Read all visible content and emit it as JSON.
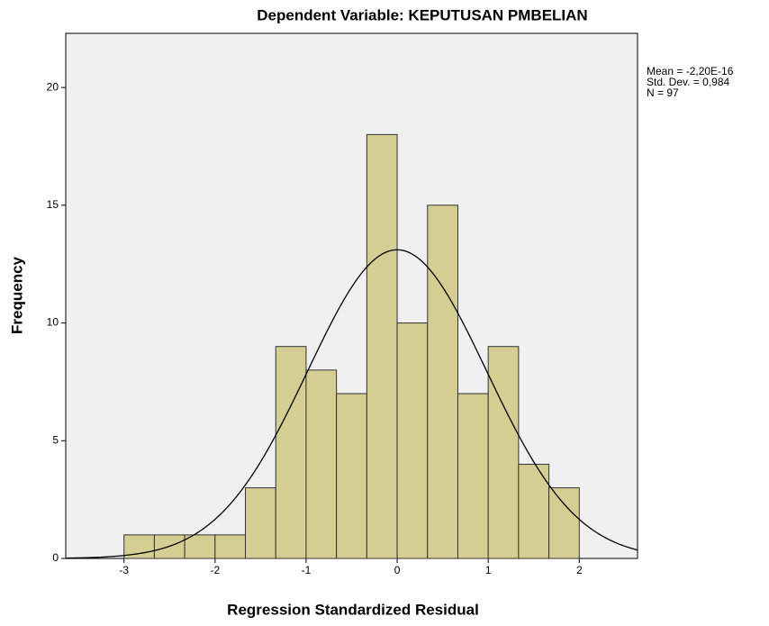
{
  "chart_data": {
    "type": "histogram",
    "title": "Dependent Variable: KEPUTUSAN PMBELIAN",
    "x_label": "Regression Standardized Residual",
    "y_label": "Frequency",
    "bins": [
      -3,
      -2.6667,
      -2.3333,
      -2,
      -1.6667,
      -1.3333,
      -1,
      -0.6667,
      -0.3333,
      0,
      0.3333,
      0.6667,
      1,
      1.3333,
      1.6667,
      2
    ],
    "values": [
      1,
      1,
      1,
      1,
      3,
      9,
      8,
      7,
      18,
      10,
      15,
      7,
      9,
      4,
      3
    ],
    "color": "#d4ce93",
    "annotations": [
      "Mean = -2,20E-16",
      "Std. Dev. = 0,984",
      "N = 97"
    ],
    "normal_curve": {
      "mean": -2.2e-16,
      "sd": 0.984,
      "n": 97
    },
    "xlim": [
      -3.64,
      2.64
    ],
    "xticks": [
      -3,
      -2,
      -1,
      0,
      1,
      2
    ],
    "ylim": [
      0,
      22.3
    ],
    "yticks": [
      0,
      5,
      10,
      15,
      20
    ]
  }
}
